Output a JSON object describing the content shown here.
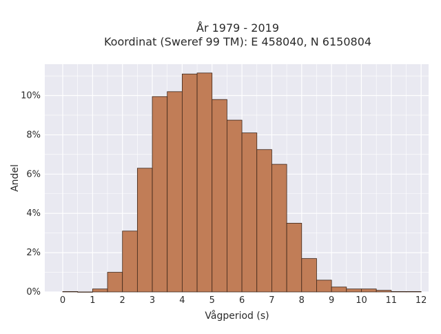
{
  "chart_data": {
    "type": "bar",
    "title_line1": "År 1979 - 2019",
    "title_line2": "Koordinat (Sweref 99 TM): E 458040, N 6150804",
    "xlabel": "Vågperiod (s)",
    "ylabel": "Andel",
    "bin_width": 0.5,
    "bin_starts": [
      0,
      0.5,
      1,
      1.5,
      2,
      2.5,
      3,
      3.5,
      4,
      4.5,
      5,
      5.5,
      6,
      6.5,
      7,
      7.5,
      8,
      8.5,
      9,
      9.5,
      10,
      10.5,
      11,
      11.5
    ],
    "values": [
      0.02,
      0,
      0.15,
      1.0,
      3.1,
      6.3,
      9.95,
      10.2,
      11.1,
      11.15,
      9.8,
      8.75,
      8.1,
      7.25,
      6.5,
      3.5,
      1.7,
      0.6,
      0.25,
      0.15,
      0.15,
      0.08,
      0.02,
      0.02
    ],
    "xlim": [
      -0.6,
      12.25
    ],
    "ylim": [
      0,
      11.6
    ],
    "xticks": [
      "0",
      "1",
      "2",
      "3",
      "4",
      "5",
      "6",
      "7",
      "8",
      "9",
      "10",
      "11",
      "12"
    ],
    "yticks": [
      "0%",
      "2%",
      "4%",
      "6%",
      "8%",
      "10%"
    ],
    "bar_color": "#c17d57",
    "bar_edge_color": "#3a2418",
    "plot_bg_color": "#e9e9f1",
    "grid": true
  }
}
